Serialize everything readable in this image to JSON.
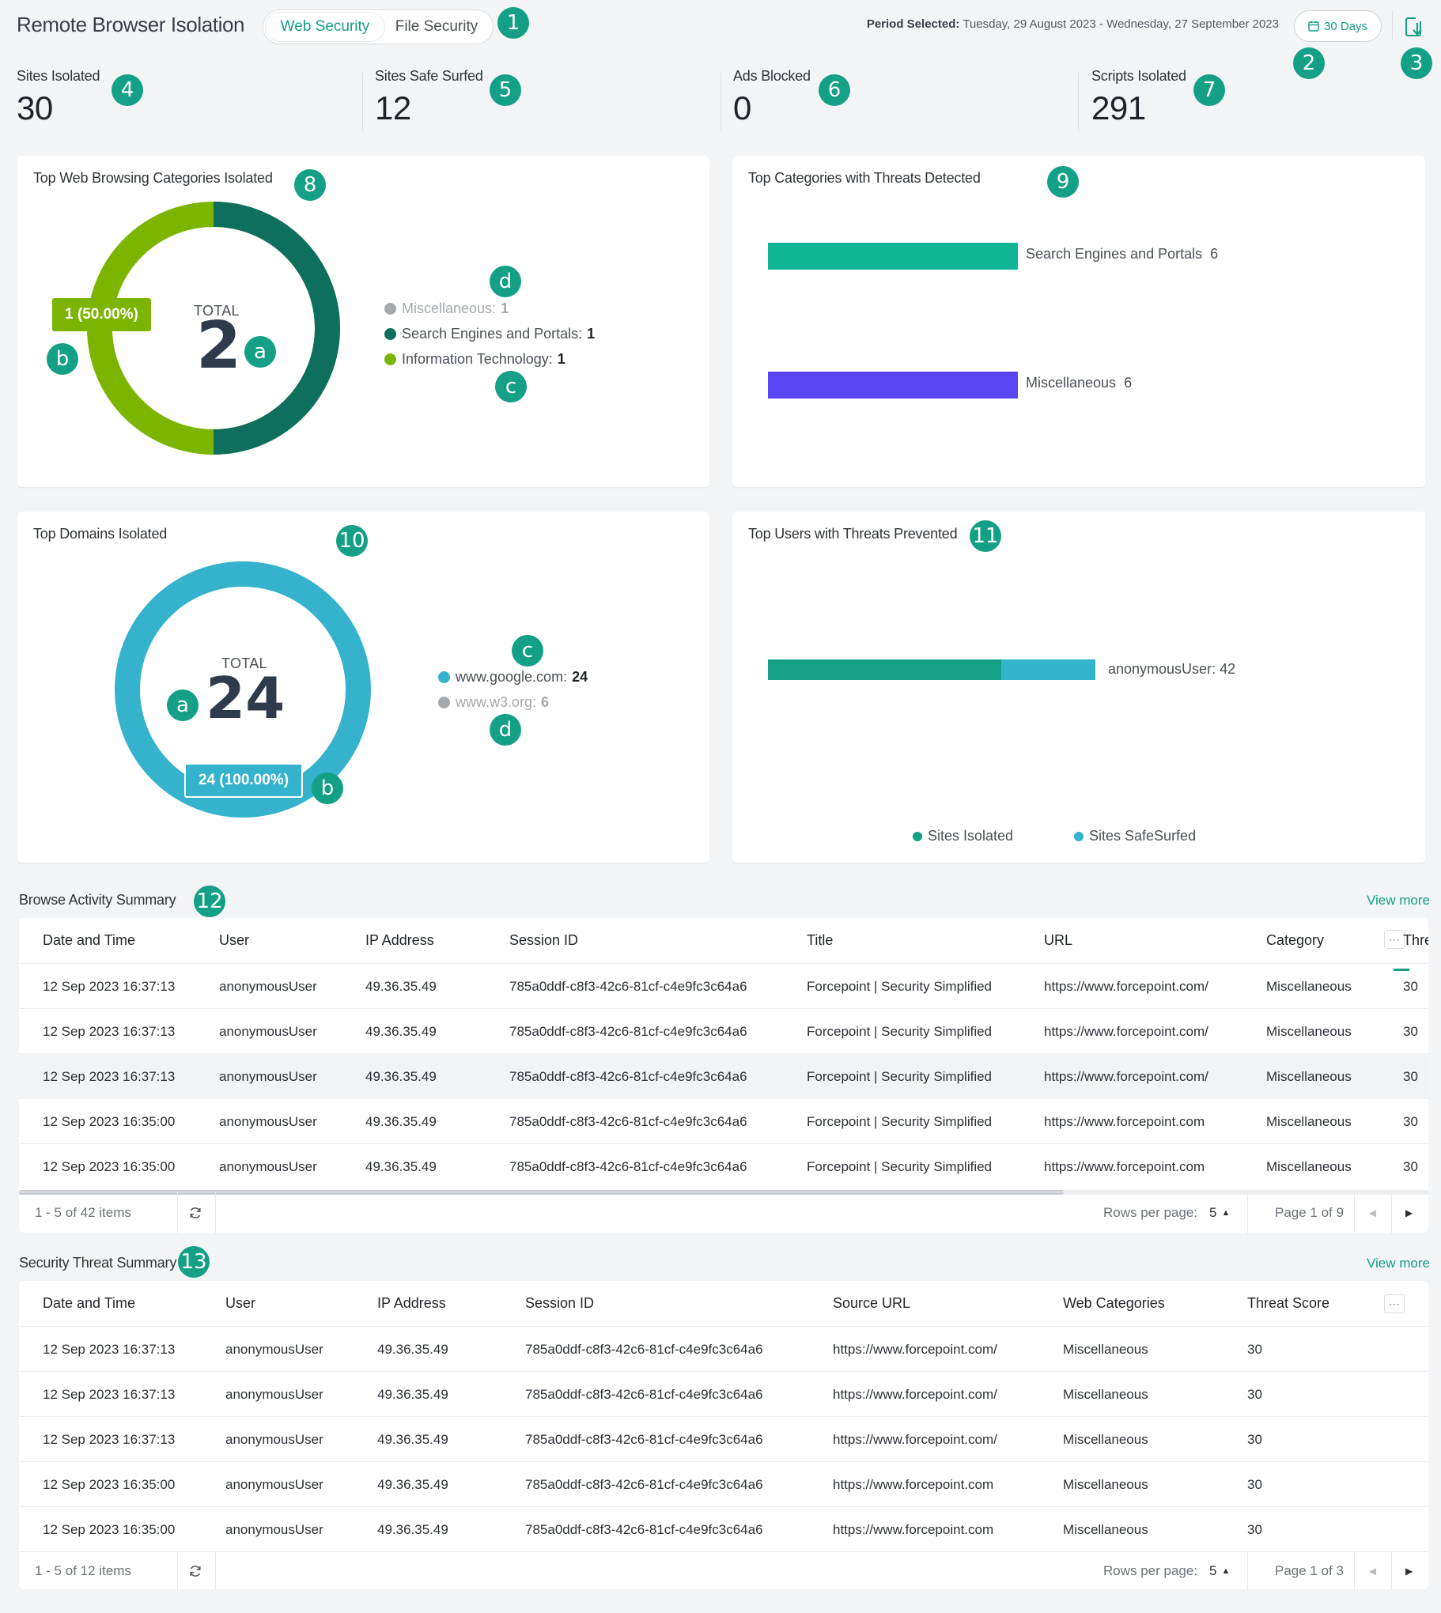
{
  "header": {
    "title": "Remote Browser Isolation",
    "tabs": [
      "Web Security",
      "File Security"
    ],
    "period_label": "Period Selected:",
    "period_value": "Tuesday, 29 August 2023 - Wednesday, 27 September 2023",
    "days_button": "30 Days"
  },
  "badges": [
    "1",
    "2",
    "3",
    "4",
    "5",
    "6",
    "7",
    "8",
    "9",
    "10",
    "11",
    "12",
    "13",
    "a",
    "b",
    "c",
    "d"
  ],
  "stats": [
    {
      "label": "Sites Isolated",
      "value": "30"
    },
    {
      "label": "Sites Safe Surfed",
      "value": "12"
    },
    {
      "label": "Ads Blocked",
      "value": "0"
    },
    {
      "label": "Scripts Isolated",
      "value": "291"
    }
  ],
  "categories_card": {
    "title": "Top Web Browsing Categories Isolated",
    "total_label": "TOTAL",
    "total_value": "2",
    "tooltip": "1 (50.00%)",
    "legend": [
      {
        "label": "Miscellaneous:",
        "value": "1",
        "color": "#a6a9ac",
        "muted": true
      },
      {
        "label": "Search Engines and Portals:",
        "value": "1",
        "color": "#0e6f5c",
        "muted": false
      },
      {
        "label": "Information Technology:",
        "value": "1",
        "color": "#7cb500",
        "muted": false
      }
    ]
  },
  "threat_categories_card": {
    "title": "Top Categories with Threats Detected",
    "bars": [
      {
        "label": "Search Engines and Portals",
        "value": "6",
        "color": "#10b597"
      },
      {
        "label": "Miscellaneous",
        "value": "6",
        "color": "#5b44f2"
      }
    ]
  },
  "domains_card": {
    "title": "Top Domains Isolated",
    "total_label": "TOTAL",
    "total_value": "24",
    "tooltip": "24 (100.00%)",
    "legend": [
      {
        "label": "www.google.com:",
        "value": "24",
        "color": "#35b2cc",
        "muted": false
      },
      {
        "label": "www.w3.org:",
        "value": "6",
        "color": "#a6a9ac",
        "muted": true
      }
    ]
  },
  "users_card": {
    "title": "Top Users with Threats Prevented",
    "bar_label": "anonymousUser: 42",
    "legend": [
      {
        "label": "Sites Isolated",
        "color": "#13a085"
      },
      {
        "label": "Sites SafeSurfed",
        "color": "#35b2cc"
      }
    ]
  },
  "browse_table": {
    "title": "Browse Activity Summary",
    "view_more": "View more",
    "columns": [
      "Date and Time",
      "User",
      "IP Address",
      "Session ID",
      "Title",
      "URL",
      "Category",
      "Thre"
    ],
    "rows": [
      [
        "12 Sep 2023 16:37:13",
        "anonymousUser",
        "49.36.35.49",
        "785a0ddf-c8f3-42c6-81cf-c4e9fc3c64a6",
        "Forcepoint | Security Simplified",
        "https://www.forcepoint.com/",
        "Miscellaneous",
        "30"
      ],
      [
        "12 Sep 2023 16:37:13",
        "anonymousUser",
        "49.36.35.49",
        "785a0ddf-c8f3-42c6-81cf-c4e9fc3c64a6",
        "Forcepoint | Security Simplified",
        "https://www.forcepoint.com/",
        "Miscellaneous",
        "30"
      ],
      [
        "12 Sep 2023 16:37:13",
        "anonymousUser",
        "49.36.35.49",
        "785a0ddf-c8f3-42c6-81cf-c4e9fc3c64a6",
        "Forcepoint | Security Simplified",
        "https://www.forcepoint.com/",
        "Miscellaneous",
        "30"
      ],
      [
        "12 Sep 2023 16:35:00",
        "anonymousUser",
        "49.36.35.49",
        "785a0ddf-c8f3-42c6-81cf-c4e9fc3c64a6",
        "Forcepoint | Security Simplified",
        "https://www.forcepoint.com",
        "Miscellaneous",
        "30"
      ],
      [
        "12 Sep 2023 16:35:00",
        "anonymousUser",
        "49.36.35.49",
        "785a0ddf-c8f3-42c6-81cf-c4e9fc3c64a6",
        "Forcepoint | Security Simplified",
        "https://www.forcepoint.com",
        "Miscellaneous",
        "30"
      ]
    ],
    "items": "1 - 5 of 42 items",
    "rows_per_page_label": "Rows per page:",
    "rows_per_page": "5",
    "page": "Page 1 of 9"
  },
  "threat_table": {
    "title": "Security Threat Summary",
    "view_more": "View more",
    "columns": [
      "Date and Time",
      "User",
      "IP Address",
      "Session ID",
      "Source URL",
      "Web Categories",
      "Threat Score"
    ],
    "rows": [
      [
        "12 Sep 2023 16:37:13",
        "anonymousUser",
        "49.36.35.49",
        "785a0ddf-c8f3-42c6-81cf-c4e9fc3c64a6",
        "https://www.forcepoint.com/",
        "Miscellaneous",
        "30"
      ],
      [
        "12 Sep 2023 16:37:13",
        "anonymousUser",
        "49.36.35.49",
        "785a0ddf-c8f3-42c6-81cf-c4e9fc3c64a6",
        "https://www.forcepoint.com/",
        "Miscellaneous",
        "30"
      ],
      [
        "12 Sep 2023 16:37:13",
        "anonymousUser",
        "49.36.35.49",
        "785a0ddf-c8f3-42c6-81cf-c4e9fc3c64a6",
        "https://www.forcepoint.com/",
        "Miscellaneous",
        "30"
      ],
      [
        "12 Sep 2023 16:35:00",
        "anonymousUser",
        "49.36.35.49",
        "785a0ddf-c8f3-42c6-81cf-c4e9fc3c64a6",
        "https://www.forcepoint.com",
        "Miscellaneous",
        "30"
      ],
      [
        "12 Sep 2023 16:35:00",
        "anonymousUser",
        "49.36.35.49",
        "785a0ddf-c8f3-42c6-81cf-c4e9fc3c64a6",
        "https://www.forcepoint.com",
        "Miscellaneous",
        "30"
      ]
    ],
    "items": "1 - 5 of 12 items",
    "rows_per_page_label": "Rows per page:",
    "rows_per_page": "5",
    "page": "Page 1 of 3"
  }
}
